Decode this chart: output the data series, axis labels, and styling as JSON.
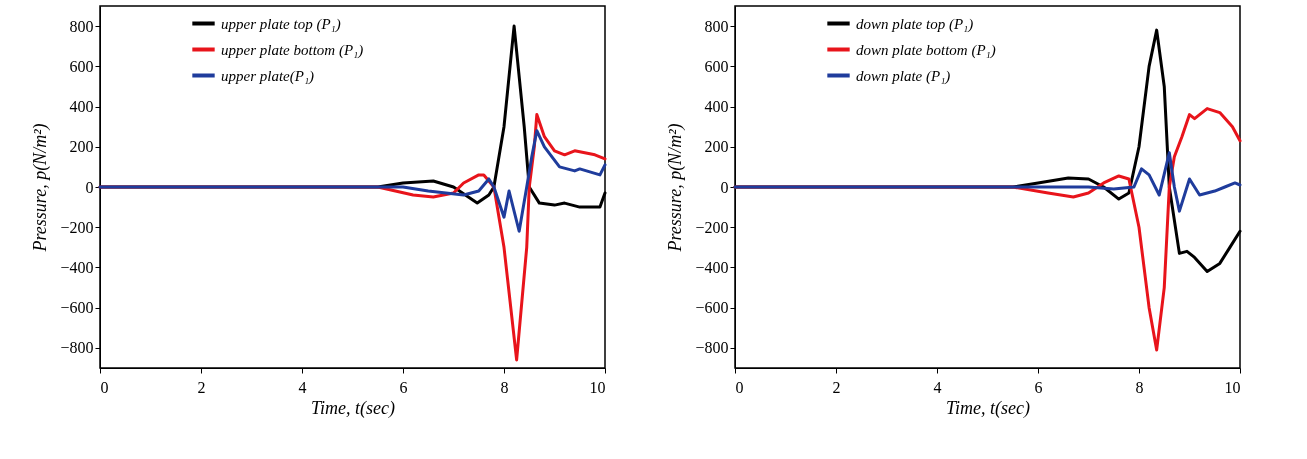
{
  "chart_data": [
    {
      "type": "line",
      "xlabel": "Time, t(sec)",
      "ylabel": "Pressure, p(N/m²)",
      "xlim": [
        0,
        10
      ],
      "xticks": [
        0,
        2,
        4,
        6,
        8,
        10
      ],
      "ylim": [
        -900,
        900
      ],
      "yticks": [
        -800,
        -600,
        -400,
        -200,
        0,
        200,
        400,
        600,
        800
      ],
      "grid": false,
      "legend": "top",
      "line_style": "solid",
      "marker": "none",
      "series": [
        {
          "name": "upper plate top (P₁)",
          "color": "#000000",
          "x": [
            0,
            5.5,
            6,
            6.6,
            7,
            7.47,
            7.7,
            7.8,
            8.0,
            8.2,
            8.4,
            8.5,
            8.7,
            9,
            9.2,
            9.5,
            9.9,
            10
          ],
          "values": [
            0,
            0,
            20,
            30,
            0,
            -80,
            -40,
            0,
            300,
            800,
            300,
            0,
            -80,
            -90,
            -80,
            -100,
            -100,
            -30
          ]
        },
        {
          "name": "upper plate bottom (P₁)",
          "color": "#e8141b",
          "x": [
            0,
            5.5,
            6.2,
            6.6,
            7,
            7.2,
            7.5,
            7.6,
            7.8,
            8.0,
            8.25,
            8.45,
            8.5,
            8.6,
            8.65,
            8.8,
            9.0,
            9.2,
            9.4,
            9.8,
            10
          ],
          "values": [
            0,
            0,
            -40,
            -50,
            -30,
            20,
            60,
            60,
            0,
            -300,
            -860,
            -300,
            0,
            200,
            360,
            250,
            180,
            160,
            180,
            160,
            140
          ]
        },
        {
          "name": "upper plate(P₁)",
          "color": "#1f3c9c",
          "x": [
            0,
            6,
            6.5,
            7.2,
            7.5,
            7.7,
            7.8,
            8.0,
            8.1,
            8.3,
            8.45,
            8.55,
            8.65,
            8.8,
            9.1,
            9.4,
            9.5,
            9.9,
            10
          ],
          "values": [
            0,
            0,
            -20,
            -40,
            -20,
            40,
            0,
            -150,
            -20,
            -220,
            0,
            150,
            280,
            200,
            100,
            80,
            90,
            60,
            110
          ]
        }
      ]
    },
    {
      "type": "line",
      "xlabel": "Time, t(sec)",
      "ylabel": "Pressure, p(N/m²)",
      "xlim": [
        0,
        10
      ],
      "xticks": [
        0,
        2,
        4,
        6,
        8,
        10
      ],
      "ylim": [
        -900,
        900
      ],
      "yticks": [
        -800,
        -600,
        -400,
        -200,
        0,
        200,
        400,
        600,
        800
      ],
      "grid": false,
      "legend": "top",
      "line_style": "solid",
      "marker": "none",
      "series": [
        {
          "name": "down plate top (P₁)",
          "color": "#000000",
          "x": [
            0,
            5.5,
            6,
            6.6,
            7,
            7.3,
            7.6,
            7.8,
            8.0,
            8.2,
            8.35,
            8.5,
            8.6,
            8.8,
            8.95,
            9.1,
            9.35,
            9.6,
            9.8,
            10
          ],
          "values": [
            0,
            0,
            20,
            45,
            40,
            0,
            -60,
            -30,
            200,
            600,
            780,
            500,
            0,
            -330,
            -320,
            -350,
            -420,
            -380,
            -300,
            -220
          ]
        },
        {
          "name": "down plate bottom (P₁)",
          "color": "#e8141b",
          "x": [
            0,
            5.5,
            6.2,
            6.7,
            7,
            7.3,
            7.6,
            7.8,
            8.0,
            8.2,
            8.35,
            8.5,
            8.6,
            8.7,
            8.85,
            9.0,
            9.1,
            9.35,
            9.6,
            9.85,
            10
          ],
          "values": [
            0,
            0,
            -30,
            -50,
            -30,
            20,
            55,
            40,
            -200,
            -600,
            -810,
            -500,
            0,
            150,
            250,
            360,
            340,
            390,
            370,
            300,
            230
          ]
        },
        {
          "name": "down plate (P₁)",
          "color": "#1f3c9c",
          "x": [
            0,
            7,
            7.5,
            7.9,
            8.05,
            8.2,
            8.4,
            8.6,
            8.7,
            8.8,
            8.95,
            9.0,
            9.2,
            9.5,
            9.7,
            9.9,
            10
          ],
          "values": [
            0,
            0,
            -10,
            0,
            90,
            60,
            -40,
            170,
            0,
            -120,
            0,
            40,
            -40,
            -20,
            0,
            20,
            10
          ]
        }
      ]
    }
  ]
}
